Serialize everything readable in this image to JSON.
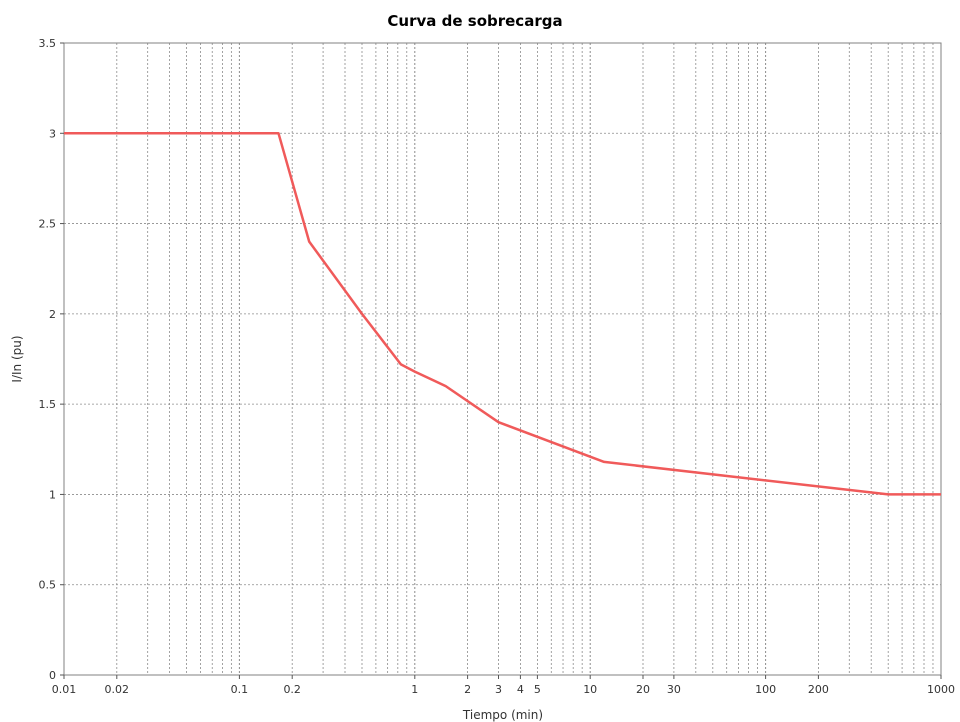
{
  "chart_data": {
    "type": "line",
    "title": "Curva de sobrecarga",
    "xlabel": "Tiempo (min)",
    "ylabel": "I/In (pu)",
    "x_scale": "log",
    "xlim": [
      0.01,
      1000
    ],
    "ylim": [
      0,
      3.5
    ],
    "grid": true,
    "x_ticks": [
      {
        "value": 0.01,
        "label": "0.01"
      },
      {
        "value": 0.02,
        "label": "0.02"
      },
      {
        "value": 0.1,
        "label": "0.1"
      },
      {
        "value": 0.2,
        "label": "0.2"
      },
      {
        "value": 1,
        "label": "1"
      },
      {
        "value": 2,
        "label": "2"
      },
      {
        "value": 3,
        "label": "3"
      },
      {
        "value": 4,
        "label": "4"
      },
      {
        "value": 5,
        "label": "5"
      },
      {
        "value": 10,
        "label": "10"
      },
      {
        "value": 20,
        "label": "20"
      },
      {
        "value": 30,
        "label": "30"
      },
      {
        "value": 100,
        "label": "100"
      },
      {
        "value": 200,
        "label": "200"
      },
      {
        "value": 1000,
        "label": "1000"
      }
    ],
    "y_ticks": [
      {
        "value": 0,
        "label": "0"
      },
      {
        "value": 0.5,
        "label": "0.5"
      },
      {
        "value": 1,
        "label": "1"
      },
      {
        "value": 1.5,
        "label": "1.5"
      },
      {
        "value": 2,
        "label": "2"
      },
      {
        "value": 2.5,
        "label": "2.5"
      },
      {
        "value": 3,
        "label": "3"
      },
      {
        "value": 3.5,
        "label": "3.5"
      }
    ],
    "series": [
      {
        "color": "#f05a5a",
        "x": [
          0.01,
          0.167,
          0.25,
          0.5,
          0.6,
          0.833,
          1.0,
          1.5,
          3.0,
          12.0,
          500,
          1000
        ],
        "y": [
          3.0,
          3.0,
          2.4,
          2.0,
          1.9,
          1.72,
          1.68,
          1.6,
          1.4,
          1.18,
          1.0,
          1.0
        ]
      }
    ]
  }
}
